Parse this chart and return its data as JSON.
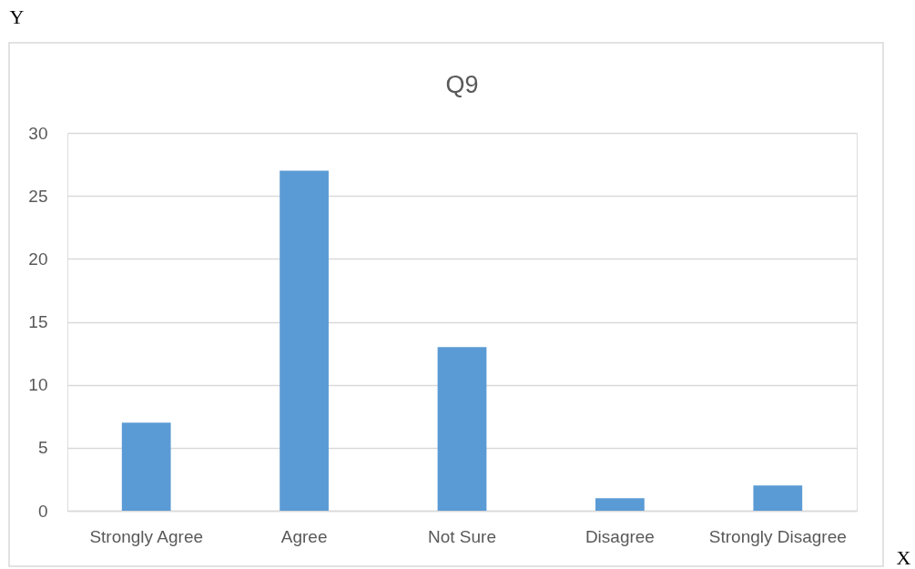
{
  "chart_data": {
    "type": "bar",
    "title": "Q9",
    "xlabel": "X",
    "ylabel": "Y",
    "categories": [
      "Strongly Agree",
      "Agree",
      "Not Sure",
      "Disagree",
      "Strongly Disagree"
    ],
    "values": [
      7,
      27,
      13,
      1,
      2
    ],
    "color": "#5b9bd5",
    "ylim": [
      0,
      30
    ],
    "yticks": [
      0,
      5,
      10,
      15,
      20,
      25,
      30
    ],
    "grid": "y"
  }
}
